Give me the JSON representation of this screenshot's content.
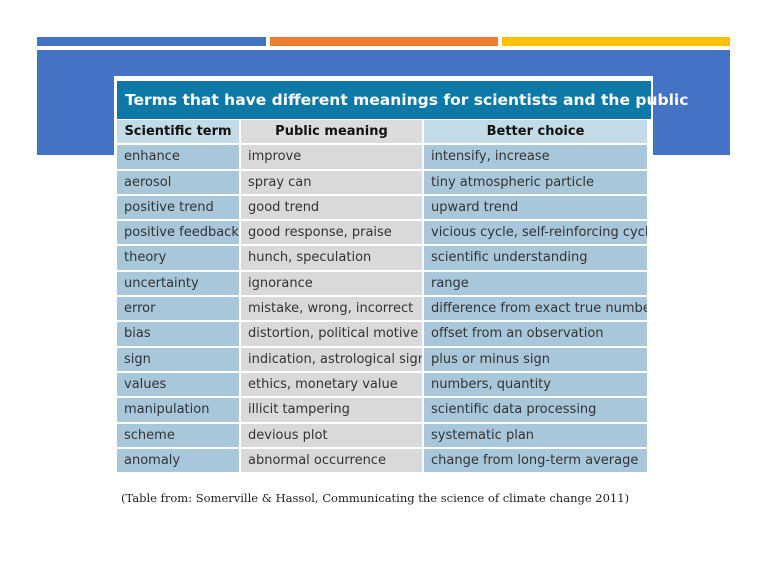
{
  "slide": {
    "accent_colors": [
      "#4472c4",
      "#ed7d31",
      "#ffc000"
    ],
    "band_color": "#4472c4"
  },
  "table": {
    "title": "Terms that have different meanings for scientists and the public",
    "title_color": "#0e79a6",
    "headers": [
      "Scientific term",
      "Public meaning",
      "Better choice"
    ],
    "rows": [
      [
        "enhance",
        "improve",
        "intensify, increase"
      ],
      [
        "aerosol",
        "spray can",
        "tiny atmospheric particle"
      ],
      [
        "positive trend",
        "good trend",
        "upward trend"
      ],
      [
        "positive feedback",
        "good response, praise",
        "vicious cycle, self-reinforcing cycle"
      ],
      [
        "theory",
        "hunch, speculation",
        "scientific understanding"
      ],
      [
        "uncertainty",
        "ignorance",
        "range"
      ],
      [
        "error",
        "mistake, wrong, incorrect",
        "difference from exact true number"
      ],
      [
        "bias",
        "distortion, political motive",
        "offset from an observation"
      ],
      [
        "sign",
        "indication, astrological sign",
        "plus or minus sign"
      ],
      [
        "values",
        "ethics, monetary value",
        "numbers, quantity"
      ],
      [
        "manipulation",
        "illicit tampering",
        "scientific data processing"
      ],
      [
        "scheme",
        "devious plot",
        "systematic plan"
      ],
      [
        "anomaly",
        "abnormal occurrence",
        "change from long-term average"
      ]
    ]
  },
  "caption": "(Table from: Somerville & Hassol, Communicating the science of climate change 2011)"
}
